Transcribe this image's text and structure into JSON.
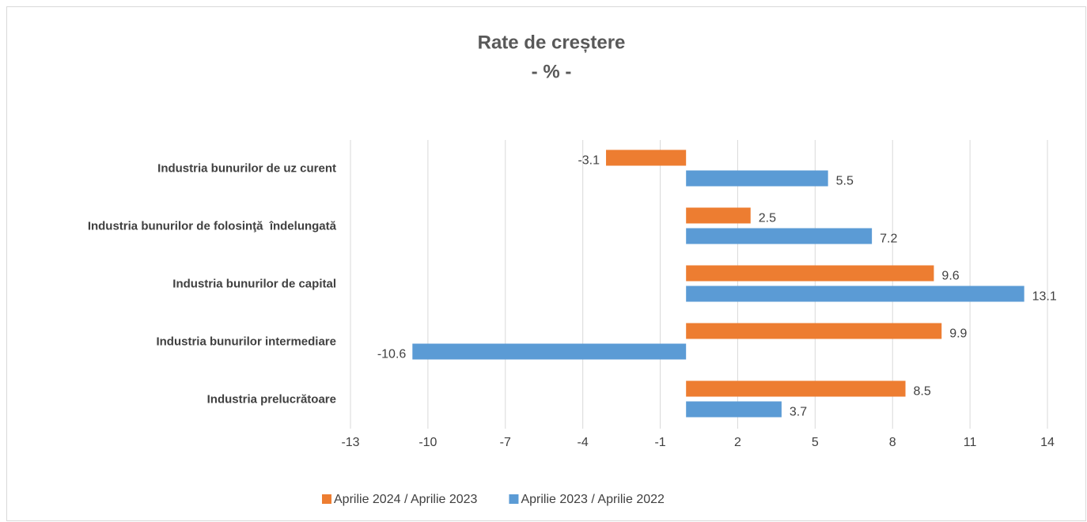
{
  "chart_data": {
    "type": "hbar",
    "title": "Rate de creștere",
    "subtitle": "- % -",
    "categories": [
      "Industria bunurilor de uz curent",
      "Industria bunurilor de folosinţă  îndelungată",
      "Industria bunurilor de capital",
      "Industria bunurilor intermediare",
      "Industria prelucrătoare"
    ],
    "series": [
      {
        "name": "Aprilie 2024 / Aprilie 2023",
        "color": "#ed7d31",
        "values": [
          -3.1,
          2.5,
          9.6,
          9.9,
          8.5
        ]
      },
      {
        "name": "Aprilie 2023 / Aprilie 2022",
        "color": "#5b9bd5",
        "values": [
          5.5,
          7.2,
          13.1,
          -10.6,
          3.7
        ]
      }
    ],
    "xlim": [
      -13,
      14
    ],
    "xticks": [
      -13,
      -10,
      -7,
      -4,
      -1,
      2,
      5,
      8,
      11,
      14
    ],
    "grid": true,
    "legend": "bottom"
  }
}
